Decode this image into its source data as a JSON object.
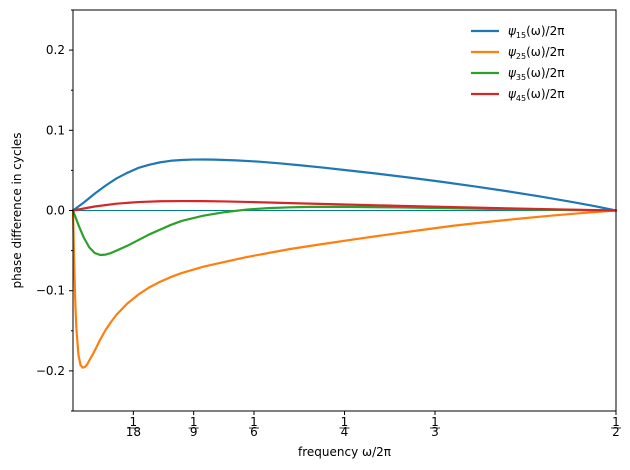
{
  "chart_data": {
    "type": "line",
    "title": "",
    "xlabel": "frequency ω/2π",
    "ylabel": "phase difference in cycles",
    "xlim": [
      0,
      0.5
    ],
    "ylim": [
      -0.25,
      0.25
    ],
    "grid": false,
    "legend_position": "top-right",
    "x_ticks": [
      {
        "value": 0.0555556,
        "num": "1",
        "den": "18"
      },
      {
        "value": 0.1111111,
        "num": "1",
        "den": "9"
      },
      {
        "value": 0.1666667,
        "num": "1",
        "den": "6"
      },
      {
        "value": 0.25,
        "num": "1",
        "den": "4"
      },
      {
        "value": 0.3333333,
        "num": "1",
        "den": "3"
      },
      {
        "value": 0.5,
        "num": "1",
        "den": "2"
      }
    ],
    "y_ticks": [
      {
        "value": 0.2,
        "label": "0.2"
      },
      {
        "value": 0.1,
        "label": "0.1"
      },
      {
        "value": 0.0,
        "label": "0.0"
      },
      {
        "value": -0.1,
        "label": "−0.1"
      },
      {
        "value": -0.2,
        "label": "−0.2"
      }
    ],
    "y_minor_ticks": [
      0.25,
      0.15,
      0.05,
      -0.05,
      -0.15,
      -0.25
    ],
    "zero_line_color": "#008080",
    "series": [
      {
        "name": "ψ₁₅(ω)/2π",
        "legend_base": "ψ",
        "legend_sub": "15",
        "legend_tail": "(ω)/2π",
        "color": "#1f77b4",
        "x": [
          0,
          0.01,
          0.02,
          0.03,
          0.04,
          0.05,
          0.06,
          0.07,
          0.08,
          0.09,
          0.1,
          0.11,
          0.12,
          0.13,
          0.14,
          0.15,
          0.17,
          0.19,
          0.21,
          0.23,
          0.25,
          0.28,
          0.31,
          0.34,
          0.37,
          0.4,
          0.43,
          0.46,
          0.48,
          0.5
        ],
        "y": [
          0,
          0.01,
          0.021,
          0.031,
          0.04,
          0.047,
          0.053,
          0.057,
          0.06,
          0.062,
          0.063,
          0.0635,
          0.0636,
          0.0634,
          0.063,
          0.0625,
          0.061,
          0.0588,
          0.0563,
          0.0535,
          0.0505,
          0.046,
          0.041,
          0.0357,
          0.03,
          0.024,
          0.0175,
          0.0105,
          0.0055,
          0
        ]
      },
      {
        "name": "ψ₂₅(ω)/2π",
        "legend_base": "ψ",
        "legend_sub": "25",
        "legend_tail": "(ω)/2π",
        "color": "#ff7f0e",
        "x": [
          0,
          0.001,
          0.002,
          0.003,
          0.005,
          0.007,
          0.009,
          0.011,
          0.013,
          0.015,
          0.018,
          0.021,
          0.025,
          0.03,
          0.035,
          0.04,
          0.05,
          0.06,
          0.07,
          0.08,
          0.09,
          0.1,
          0.12,
          0.14,
          0.16,
          0.18,
          0.2,
          0.23,
          0.26,
          0.29,
          0.32,
          0.35,
          0.38,
          0.41,
          0.44,
          0.47,
          0.5
        ],
        "y": [
          0,
          -0.06,
          -0.11,
          -0.145,
          -0.18,
          -0.193,
          -0.196,
          -0.195,
          -0.192,
          -0.187,
          -0.18,
          -0.172,
          -0.161,
          -0.149,
          -0.139,
          -0.13,
          -0.116,
          -0.105,
          -0.096,
          -0.089,
          -0.083,
          -0.078,
          -0.07,
          -0.064,
          -0.058,
          -0.053,
          -0.048,
          -0.0418,
          -0.0358,
          -0.03,
          -0.0245,
          -0.019,
          -0.0145,
          -0.0103,
          -0.0065,
          -0.003,
          0
        ]
      },
      {
        "name": "ψ₃₅(ω)/2π",
        "legend_base": "ψ",
        "legend_sub": "35",
        "legend_tail": "(ω)/2π",
        "color": "#2ca02c",
        "x": [
          0,
          0.005,
          0.01,
          0.015,
          0.02,
          0.025,
          0.03,
          0.035,
          0.04,
          0.05,
          0.06,
          0.07,
          0.08,
          0.09,
          0.1,
          0.12,
          0.14,
          0.16,
          0.18,
          0.2,
          0.22,
          0.25,
          0.3,
          0.35,
          0.4,
          0.45,
          0.5
        ],
        "y": [
          0,
          -0.018,
          -0.034,
          -0.046,
          -0.053,
          -0.0555,
          -0.055,
          -0.053,
          -0.05,
          -0.044,
          -0.037,
          -0.03,
          -0.024,
          -0.018,
          -0.013,
          -0.0065,
          -0.002,
          0.0012,
          0.003,
          0.004,
          0.0045,
          0.0045,
          0.0038,
          0.0028,
          0.0017,
          0.0008,
          0
        ]
      },
      {
        "name": "ψ₄₅(ω)/2π",
        "legend_base": "ψ",
        "legend_sub": "45",
        "legend_tail": "(ω)/2π",
        "color": "#d62728",
        "x": [
          0,
          0.02,
          0.04,
          0.06,
          0.08,
          0.1,
          0.12,
          0.14,
          0.16,
          0.18,
          0.2,
          0.25,
          0.3,
          0.35,
          0.4,
          0.45,
          0.5
        ],
        "y": [
          0,
          0.005,
          0.0085,
          0.0105,
          0.0115,
          0.0118,
          0.0117,
          0.0113,
          0.0107,
          0.01,
          0.0092,
          0.0075,
          0.0058,
          0.0042,
          0.0027,
          0.0013,
          0
        ]
      }
    ]
  }
}
